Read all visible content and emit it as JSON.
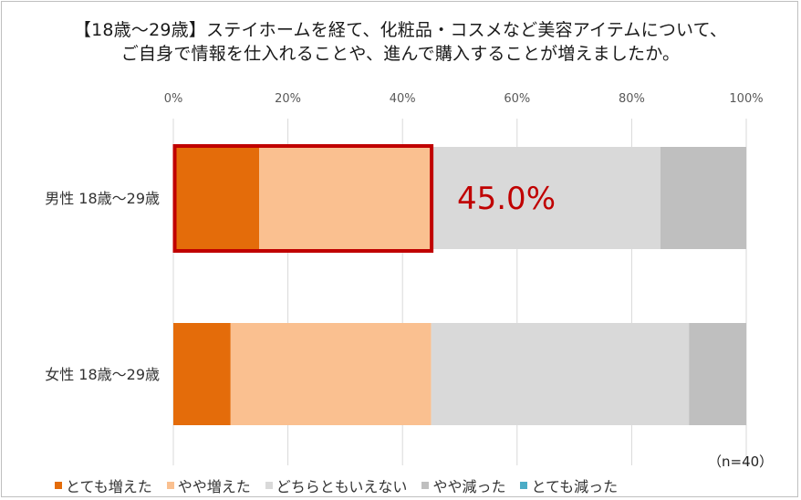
{
  "chart_data": {
    "type": "bar",
    "orientation": "horizontal",
    "stacked": true,
    "title_line1": "【18歳～29歳】ステイホームを経て、化粧品・コスメなど美容アイテムについて、",
    "title_line2": "ご自身で情報を仕入れることや、進んで購入することが増えましたか。",
    "categories": [
      "男性 18歳～29歳",
      "女性 18歳～29歳"
    ],
    "x_ticks": [
      "0%",
      "20%",
      "40%",
      "60%",
      "80%",
      "100%"
    ],
    "xlim": [
      0,
      100
    ],
    "series": [
      {
        "name": "とても増えた",
        "color": "#e46c0a",
        "values": [
          15.0,
          10.0
        ]
      },
      {
        "name": "やや増えた",
        "color": "#fac090",
        "values": [
          30.0,
          35.0
        ]
      },
      {
        "name": "どちらともいえない",
        "color": "#d9d9d9",
        "values": [
          40.0,
          45.0
        ]
      },
      {
        "name": "やや減った",
        "color": "#bfbfbf",
        "values": [
          15.0,
          10.0
        ]
      },
      {
        "name": "とても減った",
        "color": "#4bacc6",
        "values": [
          0,
          0
        ]
      }
    ],
    "highlight": {
      "category_index": 0,
      "text": "45.0%",
      "color": "#c00000"
    },
    "note": "（n=40）",
    "grid": true,
    "legend_position": "bottom"
  }
}
